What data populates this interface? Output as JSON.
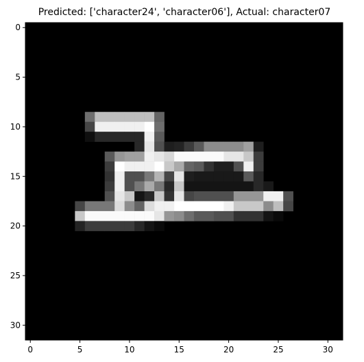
{
  "chart_data": {
    "type": "heatmap",
    "title": "Predicted: ['character24', 'character06'], Actual: character07",
    "xlabel": "",
    "ylabel": "",
    "xlim": [
      -0.5,
      31.5
    ],
    "ylim": [
      31.5,
      -0.5
    ],
    "x_ticks": [
      0,
      5,
      10,
      15,
      20,
      25,
      30
    ],
    "y_ticks": [
      0,
      5,
      10,
      15,
      20,
      25,
      30
    ],
    "colormap": "gray",
    "value_range": [
      0,
      255
    ],
    "shape": [
      32,
      32
    ],
    "grid": false,
    "nonzero_rows": [
      {
        "row": 9,
        "cols": [
          6,
          7,
          8,
          9,
          10,
          11,
          12,
          13
        ],
        "values": [
          110,
          190,
          190,
          190,
          190,
          190,
          190,
          100
        ]
      },
      {
        "row": 10,
        "cols": [
          6,
          7,
          8,
          9,
          10,
          11,
          12,
          13
        ],
        "values": [
          70,
          240,
          240,
          240,
          240,
          240,
          255,
          110
        ]
      },
      {
        "row": 11,
        "cols": [
          6,
          7,
          8,
          9,
          10,
          11,
          12,
          13
        ],
        "values": [
          15,
          40,
          40,
          40,
          40,
          40,
          240,
          90
        ]
      },
      {
        "row": 12,
        "cols": [
          11,
          12,
          13,
          14,
          15,
          16,
          17,
          18,
          19,
          20,
          21,
          22,
          23
        ],
        "values": [
          40,
          230,
          80,
          30,
          35,
          60,
          90,
          140,
          140,
          140,
          140,
          160,
          30
        ]
      },
      {
        "row": 13,
        "cols": [
          8,
          9,
          10,
          11,
          12,
          13,
          14,
          15,
          16,
          17,
          18,
          19,
          20,
          21,
          22,
          23
        ],
        "values": [
          90,
          150,
          160,
          160,
          240,
          230,
          215,
          250,
          250,
          250,
          250,
          250,
          230,
          230,
          200,
          60
        ]
      },
      {
        "row": 14,
        "cols": [
          8,
          9,
          10,
          11,
          12,
          13,
          14,
          15,
          16,
          17,
          18,
          19,
          20,
          21,
          22,
          23
        ],
        "values": [
          60,
          255,
          240,
          240,
          240,
          255,
          200,
          170,
          100,
          90,
          50,
          30,
          30,
          80,
          240,
          60
        ]
      },
      {
        "row": 15,
        "cols": [
          8,
          9,
          10,
          11,
          12,
          13,
          14,
          15,
          16,
          17,
          18,
          19,
          20,
          21,
          22,
          23
        ],
        "values": [
          50,
          240,
          80,
          80,
          120,
          180,
          70,
          230,
          30,
          25,
          25,
          25,
          25,
          25,
          90,
          40
        ]
      },
      {
        "row": 16,
        "cols": [
          8,
          9,
          10,
          11,
          12,
          13,
          14,
          15,
          16,
          17,
          18,
          19,
          20,
          21,
          22,
          23,
          24
        ],
        "values": [
          60,
          240,
          80,
          120,
          170,
          120,
          40,
          200,
          20,
          20,
          20,
          20,
          20,
          20,
          20,
          40,
          25
        ]
      },
      {
        "row": 17,
        "cols": [
          8,
          9,
          10,
          11,
          12,
          13,
          14,
          15,
          16,
          17,
          18,
          19,
          20,
          21,
          22,
          23,
          24,
          25,
          26
        ],
        "values": [
          80,
          230,
          200,
          20,
          40,
          200,
          50,
          230,
          70,
          80,
          80,
          80,
          80,
          150,
          150,
          150,
          240,
          240,
          80
        ]
      },
      {
        "row": 18,
        "cols": [
          5,
          6,
          7,
          8,
          9,
          10,
          11,
          12,
          13,
          14,
          15,
          16,
          17,
          18,
          19,
          20,
          21,
          22,
          23,
          24,
          25,
          26
        ],
        "values": [
          70,
          120,
          120,
          120,
          220,
          140,
          100,
          220,
          240,
          240,
          255,
          255,
          255,
          255,
          255,
          240,
          200,
          200,
          200,
          140,
          190,
          70
        ]
      },
      {
        "row": 19,
        "cols": [
          5,
          6,
          7,
          8,
          9,
          10,
          11,
          12,
          13,
          14,
          15,
          16,
          17,
          18,
          19,
          20,
          21,
          22,
          23,
          24,
          25
        ],
        "values": [
          200,
          250,
          250,
          250,
          250,
          250,
          250,
          250,
          230,
          150,
          140,
          110,
          90,
          90,
          80,
          80,
          50,
          50,
          50,
          20,
          10
        ]
      },
      {
        "row": 20,
        "cols": [
          5,
          6,
          7,
          8,
          9,
          10,
          11,
          12,
          13
        ],
        "values": [
          35,
          60,
          60,
          60,
          60,
          60,
          40,
          20,
          10
        ]
      }
    ]
  }
}
